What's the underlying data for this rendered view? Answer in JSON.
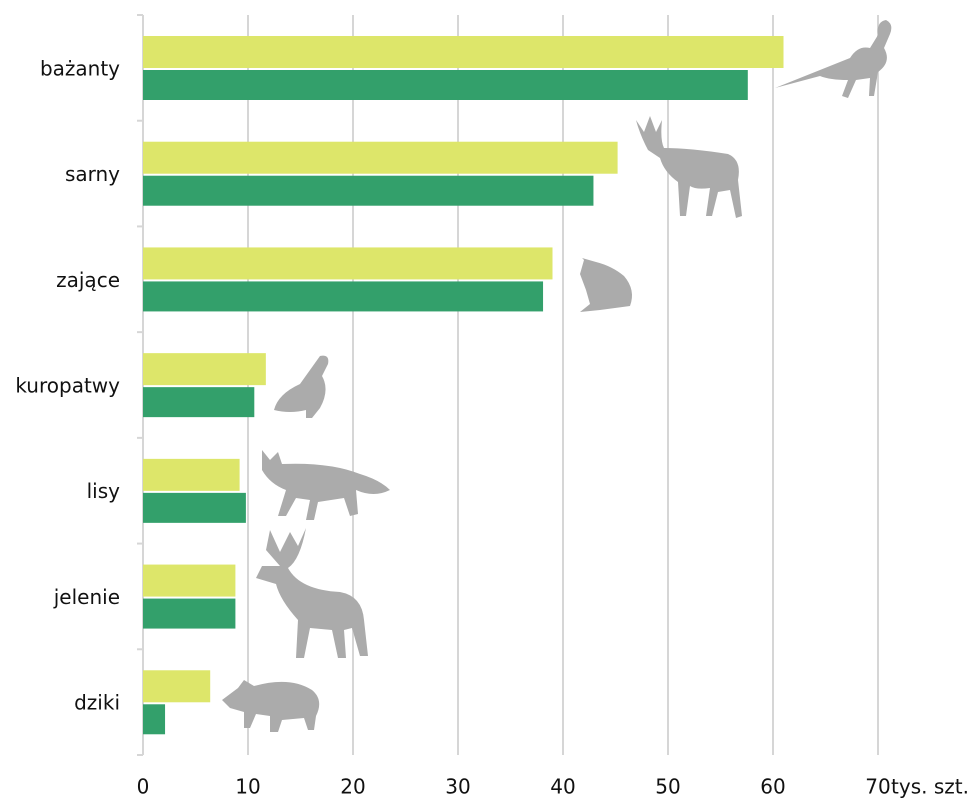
{
  "chart_data": {
    "type": "bar",
    "orientation": "horizontal",
    "categories": [
      "bażanty",
      "sarny",
      "zające",
      "kuropatwy",
      "lisy",
      "jelenie",
      "dziki"
    ],
    "series": [
      {
        "color": "#dde66a",
        "values": [
          61,
          45.2,
          39,
          11.7,
          9.2,
          8.8,
          6.4
        ]
      },
      {
        "color": "#33a06b",
        "values": [
          57.6,
          42.9,
          38.1,
          10.6,
          9.8,
          8.8,
          2.1
        ]
      }
    ],
    "xlim": [
      0,
      70
    ],
    "xticks": [
      0,
      10,
      20,
      30,
      40,
      50,
      60,
      70
    ],
    "x_unit": "tys. szt.",
    "grid": true
  }
}
